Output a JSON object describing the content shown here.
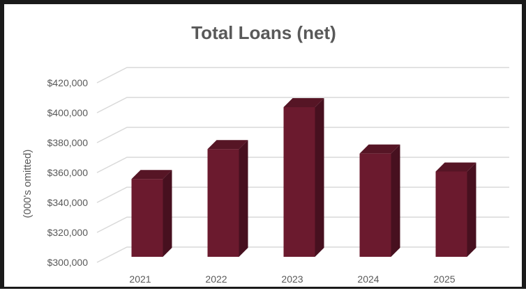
{
  "chart_data": {
    "type": "bar",
    "title": "Total Loans (net)",
    "ylabel": "(000's omitted)",
    "xlabel": "",
    "categories": [
      "2021",
      "2022",
      "2023",
      "2024",
      "2025"
    ],
    "values": [
      352000,
      372000,
      400000,
      369000,
      357000
    ],
    "ylim": [
      300000,
      420000
    ],
    "yticks": [
      "$300,000",
      "$320,000",
      "$340,000",
      "$360,000",
      "$380,000",
      "$400,000",
      "$420,000"
    ],
    "ytick_values": [
      300000,
      320000,
      340000,
      360000,
      380000,
      400000,
      420000
    ],
    "grid": true,
    "legend": "none",
    "style": "3d-column"
  },
  "colors": {
    "bar_front": "#6b1a2e",
    "bar_side": "#47101f",
    "bar_top": "#561525",
    "gridline": "#d9d9d9",
    "text": "#595959",
    "frame": "#1a1a1a"
  }
}
